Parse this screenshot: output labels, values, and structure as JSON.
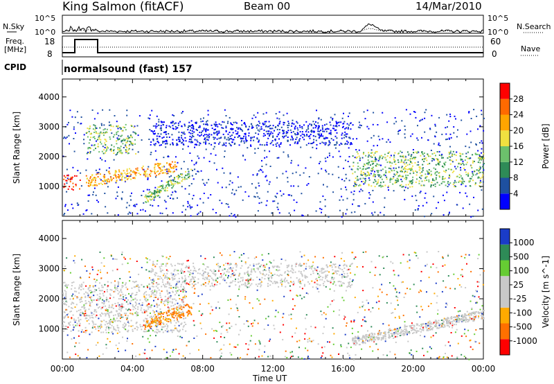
{
  "header": {
    "site": "King Salmon (fitACF)",
    "beam": "Beam 00",
    "date": "14/Mar/2010"
  },
  "top_panels": {
    "nsky_label": "N.Sky",
    "nsearch_label": "N.Search",
    "freq_label_line1": "Freq.",
    "freq_label_line2": "[MHz]",
    "nave_label": "Nave",
    "cpid_label": "CPID",
    "cpid_value": "normalsound (fast) 157",
    "noise_ticks_left": [
      "10^5",
      "10^0"
    ],
    "noise_ticks_right": [
      "10^5",
      "10^0"
    ],
    "freq_ticks": [
      "18",
      "8"
    ],
    "nave_ticks": [
      "60",
      "0"
    ]
  },
  "colors": {
    "power_scale": [
      "#0000ff",
      "#1e50a0",
      "#2e8b57",
      "#6cc06c",
      "#f0e040",
      "#ffa500",
      "#ff6a00",
      "#ff0000"
    ],
    "velocity_scale": [
      "#1a3cc8",
      "#2e8b57",
      "#66cc33",
      "#c8c8c8",
      "#c8c8c8",
      "#ffaa00",
      "#ff7000",
      "#ff0000"
    ]
  },
  "chart_data": [
    {
      "type": "heatmap",
      "panel": "power",
      "ylabel": "Slant Range [km]",
      "ylim": [
        0,
        4500
      ],
      "yticks": [
        "1000",
        "2000",
        "3000",
        "4000"
      ],
      "colorbar_label": "Power [dB]",
      "colorbar_ticks": [
        "4",
        "8",
        "12",
        "16",
        "20",
        "24",
        "28"
      ],
      "bands": [
        {
          "x": [
            "00:00",
            "01:00"
          ],
          "range_km": [
            900,
            1400
          ],
          "level": "high"
        },
        {
          "x": [
            "01:20",
            "06:30"
          ],
          "range_km": [
            1000,
            1700
          ],
          "level": "medium-high"
        },
        {
          "x": [
            "01:20",
            "04:10"
          ],
          "range_km": [
            2100,
            3100
          ],
          "level": "medium"
        },
        {
          "x": [
            "04:40",
            "07:20"
          ],
          "range_km": [
            600,
            1500
          ],
          "level": "medium"
        },
        {
          "x": [
            "05:00",
            "16:30"
          ],
          "range_km": [
            2400,
            3200
          ],
          "level": "low"
        },
        {
          "x": [
            "16:30",
            "24:00"
          ],
          "range_km": [
            1000,
            2200
          ],
          "level": "medium"
        }
      ]
    },
    {
      "type": "heatmap",
      "panel": "velocity",
      "ylabel": "Slant Range [km]",
      "ylim": [
        0,
        4500
      ],
      "yticks": [
        "1000",
        "2000",
        "3000",
        "4000"
      ],
      "colorbar_label": "Velocity [m s^-1]",
      "colorbar_ticks": [
        "1000",
        "500",
        "100",
        "25",
        "-25",
        "-100",
        "-500",
        "-1000"
      ],
      "xlabel": "Time UT",
      "xticks": [
        "00:00",
        "04:00",
        "08:00",
        "12:00",
        "16:00",
        "20:00",
        "00:00"
      ],
      "bands": [
        {
          "x": [
            "00:00",
            "07:00"
          ],
          "range_km": [
            900,
            2600
          ],
          "velocity": "near zero"
        },
        {
          "x": [
            "04:40",
            "07:20"
          ],
          "range_km": [
            600,
            1500
          ],
          "velocity": "-100 to -500"
        },
        {
          "x": [
            "05:00",
            "16:30"
          ],
          "range_km": [
            2400,
            3200
          ],
          "velocity": "near zero"
        },
        {
          "x": [
            "16:30",
            "24:00"
          ],
          "range_km": [
            1100,
            2200
          ],
          "velocity": "near zero"
        }
      ]
    }
  ]
}
